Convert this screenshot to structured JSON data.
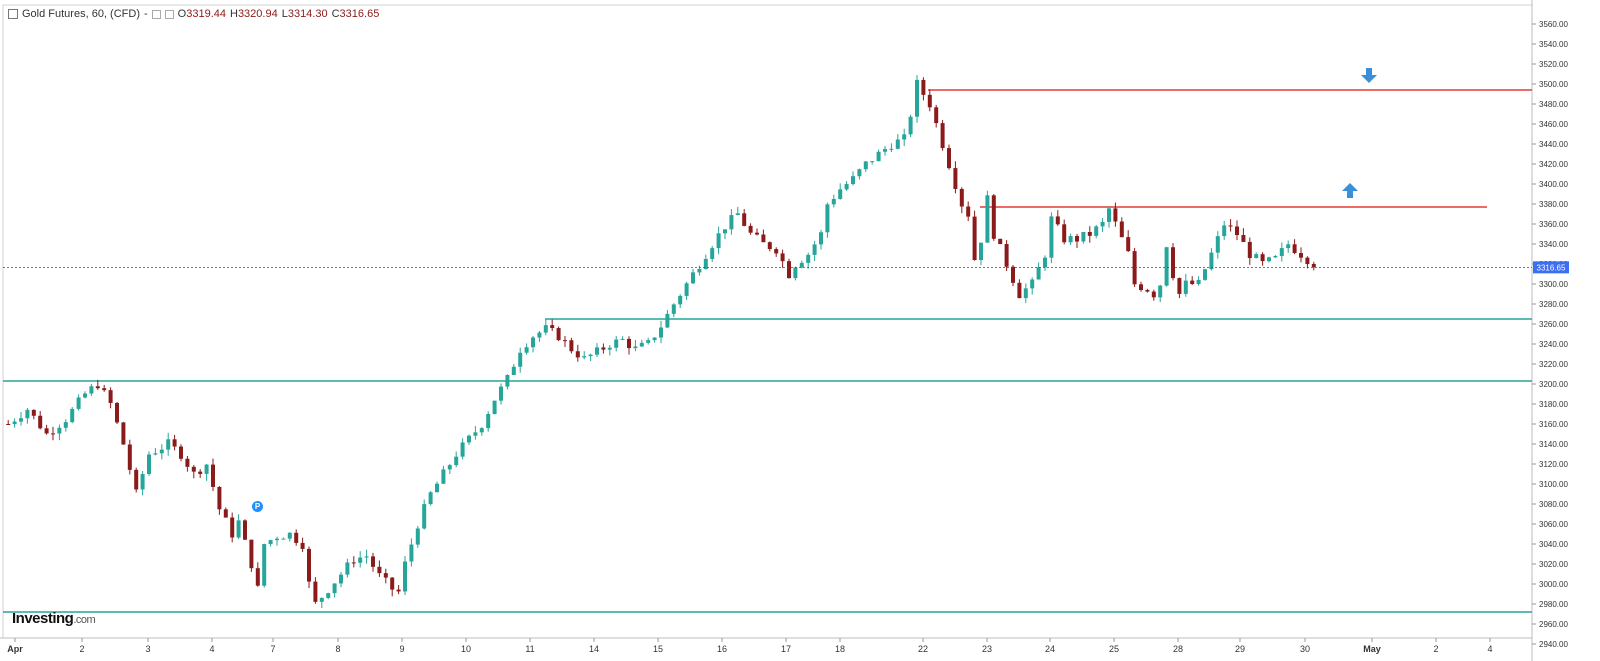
{
  "header": {
    "instrument": "Gold Futures, 60, (CFD)",
    "separator": "-",
    "open_label": "O",
    "open": "3319.44",
    "high_label": "H",
    "high": "3320.94",
    "low_label": "L",
    "low": "3314.30",
    "close_label": "C",
    "close": "3316.65"
  },
  "logo": {
    "main": "Investing",
    "suffix": ".com"
  },
  "badge": {
    "label": "P"
  },
  "colors": {
    "up": "#26a69a",
    "down": "#8b1a1a",
    "support": "#26a69a",
    "resistance": "#e53935",
    "price_line": "#1e40ff",
    "arrow": "#3a8fd6"
  },
  "chart_data": {
    "type": "candlestick",
    "interval": "60",
    "ylim": [
      2940,
      3570
    ],
    "y_ticks": [
      "3560.00",
      "3540.00",
      "3520.00",
      "3500.00",
      "3480.00",
      "3460.00",
      "3440.00",
      "3420.00",
      "3400.00",
      "3380.00",
      "3360.00",
      "3340.00",
      "3320.00",
      "3300.00",
      "3280.00",
      "3260.00",
      "3240.00",
      "3220.00",
      "3200.00",
      "3180.00",
      "3160.00",
      "3140.00",
      "3120.00",
      "3100.00",
      "3080.00",
      "3060.00",
      "3040.00",
      "3020.00",
      "3000.00",
      "2980.00",
      "2960.00",
      "2940.00"
    ],
    "x_labels": [
      "Apr",
      "2",
      "3",
      "4",
      "7",
      "8",
      "9",
      "10",
      "11",
      "14",
      "15",
      "16",
      "17",
      "18",
      "22",
      "23",
      "24",
      "25",
      "28",
      "29",
      "30",
      "May",
      "2",
      "4"
    ],
    "current_price": 3316.65,
    "current_price_label": "3316.65",
    "path": [
      [
        0,
        3160
      ],
      [
        3,
        3175
      ],
      [
        6,
        3150
      ],
      [
        9,
        3165
      ],
      [
        12,
        3190
      ],
      [
        14,
        3200
      ],
      [
        16,
        3180
      ],
      [
        18,
        3140
      ],
      [
        20,
        3090
      ],
      [
        22,
        3130
      ],
      [
        25,
        3140
      ],
      [
        27,
        3130
      ],
      [
        29,
        3110
      ],
      [
        31,
        3120
      ],
      [
        33,
        3075
      ],
      [
        35,
        3050
      ],
      [
        36,
        3062
      ],
      [
        38,
        3020
      ],
      [
        39,
        2995
      ],
      [
        40,
        3040
      ],
      [
        42,
        3048
      ],
      [
        44,
        3050
      ],
      [
        46,
        3040
      ],
      [
        47,
        3000
      ],
      [
        48,
        2980
      ],
      [
        50,
        2995
      ],
      [
        52,
        3010
      ],
      [
        54,
        3025
      ],
      [
        56,
        3028
      ],
      [
        58,
        3008
      ],
      [
        60,
        2995
      ],
      [
        61,
        2992
      ],
      [
        62,
        3020
      ],
      [
        64,
        3060
      ],
      [
        66,
        3090
      ],
      [
        68,
        3110
      ],
      [
        70,
        3130
      ],
      [
        72,
        3145
      ],
      [
        74,
        3160
      ],
      [
        76,
        3185
      ],
      [
        78,
        3205
      ],
      [
        80,
        3235
      ],
      [
        82,
        3248
      ],
      [
        84,
        3255
      ],
      [
        86,
        3248
      ],
      [
        88,
        3235
      ],
      [
        90,
        3225
      ],
      [
        92,
        3232
      ],
      [
        94,
        3240
      ],
      [
        96,
        3244
      ],
      [
        98,
        3235
      ],
      [
        100,
        3240
      ],
      [
        102,
        3258
      ],
      [
        104,
        3280
      ],
      [
        106,
        3300
      ],
      [
        108,
        3320
      ],
      [
        110,
        3340
      ],
      [
        112,
        3358
      ],
      [
        114,
        3370
      ],
      [
        116,
        3350
      ],
      [
        118,
        3340
      ],
      [
        120,
        3335
      ],
      [
        122,
        3310
      ],
      [
        123,
        3320
      ],
      [
        125,
        3330
      ],
      [
        127,
        3350
      ],
      [
        128,
        3380
      ],
      [
        130,
        3395
      ],
      [
        132,
        3405
      ],
      [
        134,
        3420
      ],
      [
        136,
        3430
      ],
      [
        138,
        3440
      ],
      [
        140,
        3445
      ],
      [
        141,
        3470
      ],
      [
        142,
        3500
      ],
      [
        143,
        3490
      ],
      [
        144,
        3480
      ],
      [
        145,
        3460
      ],
      [
        146,
        3440
      ],
      [
        148,
        3400
      ],
      [
        149,
        3380
      ],
      [
        150,
        3370
      ],
      [
        151,
        3325
      ],
      [
        152,
        3345
      ],
      [
        153,
        3385
      ],
      [
        154,
        3350
      ],
      [
        156,
        3320
      ],
      [
        157,
        3305
      ],
      [
        158,
        3290
      ],
      [
        160,
        3300
      ],
      [
        162,
        3330
      ],
      [
        163,
        3365
      ],
      [
        165,
        3345
      ],
      [
        167,
        3345
      ],
      [
        169,
        3350
      ],
      [
        171,
        3360
      ],
      [
        172,
        3375
      ],
      [
        173,
        3360
      ],
      [
        175,
        3330
      ],
      [
        176,
        3300
      ],
      [
        178,
        3295
      ],
      [
        179,
        3290
      ],
      [
        180,
        3300
      ],
      [
        181,
        3340
      ],
      [
        182,
        3310
      ],
      [
        183,
        3290
      ],
      [
        184,
        3300
      ],
      [
        186,
        3300
      ],
      [
        188,
        3330
      ],
      [
        190,
        3360
      ],
      [
        192,
        3350
      ],
      [
        194,
        3330
      ],
      [
        196,
        3320
      ],
      [
        198,
        3325
      ],
      [
        200,
        3340
      ],
      [
        202,
        3330
      ],
      [
        203,
        3325
      ],
      [
        204,
        3316.65
      ]
    ],
    "horizontal_levels": [
      {
        "kind": "support",
        "value": 2972
      },
      {
        "kind": "support",
        "value": 3203
      },
      {
        "kind": "support",
        "value": 3265
      },
      {
        "kind": "resistance",
        "value": 3377
      },
      {
        "kind": "resistance",
        "value": 3494
      }
    ],
    "annotations": [
      {
        "kind": "arrow-down",
        "near_level": 3494
      },
      {
        "kind": "arrow-up",
        "near_level": 3377
      }
    ]
  }
}
